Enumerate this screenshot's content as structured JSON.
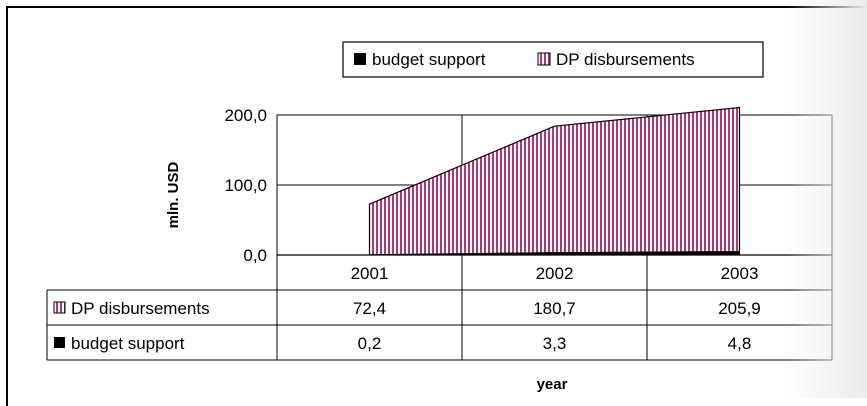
{
  "colors": {
    "dp_fill": "#b0367a",
    "budget_fill": "#000000",
    "gridline": "#000000"
  },
  "chart_data": {
    "type": "area",
    "categories": [
      "2001",
      "2002",
      "2003"
    ],
    "series": [
      {
        "name": "budget support",
        "values": [
          0.2,
          3.3,
          4.8
        ]
      },
      {
        "name": "DP disbursements",
        "values": [
          72.4,
          180.7,
          205.9
        ]
      }
    ],
    "table_values": {
      "DP disbursements": [
        "72,4",
        "180,7",
        "205,9"
      ],
      "budget support": [
        "0,2",
        "3,3",
        "4,8"
      ]
    },
    "ylabel": "mln. USD",
    "xlabel": "year",
    "ylim": [
      0,
      200
    ],
    "yticks": [
      "0,0",
      "100,0",
      "200,0"
    ],
    "ytick_values": [
      0,
      100,
      200
    ],
    "legend_position": "top-center",
    "stacked": true,
    "grid": true
  }
}
